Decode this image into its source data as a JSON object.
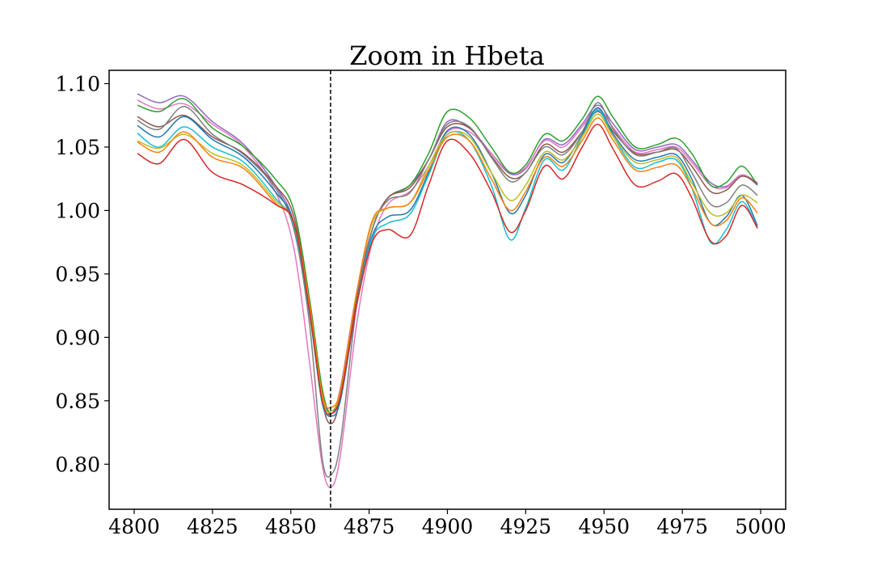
{
  "chart_data": {
    "type": "line",
    "title": "Zoom in Hbeta",
    "xlabel": "",
    "ylabel": "",
    "xlim": [
      4792,
      5008
    ],
    "ylim": [
      0.7645,
      1.1105
    ],
    "xticks": [
      4800,
      4825,
      4850,
      4875,
      4900,
      4925,
      4950,
      4975,
      5000
    ],
    "xtick_labels": [
      "4800",
      "4825",
      "4850",
      "4875",
      "4900",
      "4925",
      "4950",
      "4975",
      "5000"
    ],
    "yticks": [
      0.8,
      0.85,
      0.9,
      0.95,
      1.0,
      1.05,
      1.1
    ],
    "ytick_labels": [
      "0.80",
      "0.85",
      "0.90",
      "0.95",
      "1.00",
      "1.05",
      "1.10"
    ],
    "vline_x": 4862.7,
    "grid": false,
    "legend": "none",
    "x": [
      4801,
      4808,
      4816,
      4825,
      4835,
      4845,
      4851,
      4856,
      4860,
      4863,
      4866,
      4871,
      4876,
      4881,
      4888,
      4894,
      4900,
      4907,
      4914,
      4920,
      4925,
      4931,
      4937,
      4943,
      4948,
      4953,
      4960,
      4967,
      4973,
      4978,
      4984,
      4989,
      4994,
      4999
    ],
    "series": [
      {
        "color": "#9467bd",
        "values": [
          1.092,
          1.085,
          1.09,
          1.07,
          1.052,
          1.02,
          0.99,
          0.92,
          0.855,
          0.84,
          0.862,
          0.935,
          0.985,
          1.01,
          1.02,
          1.04,
          1.07,
          1.065,
          1.045,
          1.029,
          1.033,
          1.056,
          1.052,
          1.068,
          1.083,
          1.068,
          1.048,
          1.05,
          1.052,
          1.04,
          1.022,
          1.019,
          1.028,
          1.02
        ]
      },
      {
        "color": "#e377c2",
        "values": [
          1.087,
          1.08,
          1.084,
          1.068,
          1.05,
          1.015,
          0.97,
          0.88,
          0.8,
          0.782,
          0.81,
          0.91,
          0.975,
          1.005,
          1.015,
          1.035,
          1.062,
          1.062,
          1.045,
          1.03,
          1.034,
          1.055,
          1.05,
          1.066,
          1.08,
          1.065,
          1.046,
          1.048,
          1.05,
          1.038,
          1.02,
          1.018,
          1.028,
          1.022
        ]
      },
      {
        "color": "#2ca02c",
        "values": [
          1.083,
          1.078,
          1.088,
          1.065,
          1.05,
          1.025,
          1.0,
          0.93,
          0.86,
          0.84,
          0.86,
          0.93,
          0.985,
          1.01,
          1.02,
          1.045,
          1.078,
          1.073,
          1.05,
          1.03,
          1.036,
          1.06,
          1.055,
          1.072,
          1.09,
          1.073,
          1.05,
          1.052,
          1.057,
          1.045,
          1.02,
          1.022,
          1.035,
          1.02
        ]
      },
      {
        "color": "#8c564b",
        "values": [
          1.074,
          1.066,
          1.075,
          1.058,
          1.045,
          1.02,
          0.995,
          0.925,
          0.85,
          0.832,
          0.855,
          0.93,
          0.985,
          1.01,
          1.018,
          1.04,
          1.066,
          1.065,
          1.043,
          1.026,
          1.03,
          1.052,
          1.046,
          1.062,
          1.078,
          1.062,
          1.045,
          1.046,
          1.048,
          1.035,
          1.015,
          1.016,
          1.027,
          1.021
        ]
      },
      {
        "color": "#7f7f7f",
        "values": [
          1.071,
          1.064,
          1.082,
          1.06,
          1.044,
          1.018,
          0.985,
          0.91,
          0.805,
          0.792,
          0.82,
          0.925,
          0.985,
          1.008,
          1.014,
          1.04,
          1.068,
          1.066,
          1.042,
          1.023,
          1.03,
          1.05,
          1.044,
          1.062,
          1.085,
          1.064,
          1.044,
          1.046,
          1.049,
          1.03,
          1.005,
          1.006,
          1.02,
          1.012
        ]
      },
      {
        "color": "#1f77b4",
        "values": [
          1.067,
          1.058,
          1.074,
          1.056,
          1.042,
          1.015,
          0.99,
          0.92,
          0.85,
          0.838,
          0.852,
          0.925,
          0.98,
          0.995,
          1.0,
          1.03,
          1.063,
          1.06,
          1.03,
          0.998,
          1.012,
          1.044,
          1.038,
          1.06,
          1.081,
          1.06,
          1.04,
          1.042,
          1.044,
          1.025,
          0.99,
          0.995,
          1.012,
          0.988
        ]
      },
      {
        "color": "#17becf",
        "values": [
          1.061,
          1.05,
          1.066,
          1.05,
          1.038,
          1.01,
          0.988,
          0.918,
          0.848,
          0.84,
          0.855,
          0.925,
          0.978,
          0.99,
          0.997,
          1.028,
          1.06,
          1.055,
          1.02,
          0.977,
          1.002,
          1.04,
          1.032,
          1.058,
          1.079,
          1.058,
          1.034,
          1.038,
          1.04,
          1.018,
          0.975,
          0.985,
          1.007,
          0.986
        ]
      },
      {
        "color": "#bcbd22",
        "values": [
          1.055,
          1.049,
          1.06,
          1.045,
          1.035,
          1.008,
          0.99,
          0.925,
          0.852,
          0.842,
          0.86,
          0.935,
          0.99,
          1.002,
          1.006,
          1.035,
          1.06,
          1.058,
          1.03,
          1.008,
          1.02,
          1.046,
          1.04,
          1.058,
          1.076,
          1.058,
          1.038,
          1.04,
          1.042,
          1.022,
          0.998,
          0.998,
          1.012,
          1.006
        ]
      },
      {
        "color": "#ff7f0e",
        "values": [
          1.054,
          1.046,
          1.062,
          1.042,
          1.033,
          1.006,
          0.99,
          0.925,
          0.855,
          0.845,
          0.86,
          0.935,
          0.992,
          1.002,
          1.006,
          1.032,
          1.058,
          1.055,
          1.025,
          1.0,
          1.015,
          1.042,
          1.035,
          1.055,
          1.073,
          1.055,
          1.032,
          1.034,
          1.036,
          1.018,
          0.99,
          0.992,
          1.01,
          0.998
        ]
      },
      {
        "color": "#d62728",
        "values": [
          1.045,
          1.037,
          1.056,
          1.03,
          1.02,
          1.005,
          0.99,
          0.92,
          0.85,
          0.84,
          0.855,
          0.925,
          0.975,
          0.985,
          0.98,
          1.02,
          1.055,
          1.045,
          1.015,
          0.983,
          1.0,
          1.035,
          1.025,
          1.05,
          1.068,
          1.048,
          1.02,
          1.023,
          1.029,
          1.01,
          0.976,
          0.98,
          1.004,
          0.986
        ]
      }
    ]
  }
}
